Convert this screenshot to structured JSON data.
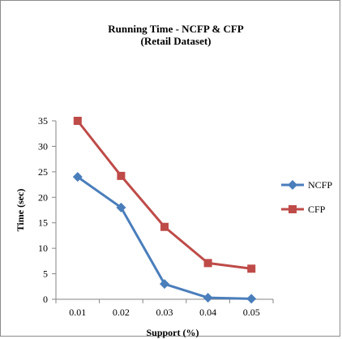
{
  "chart_data": {
    "type": "line",
    "title": "Running Time -  NCFP & CFP",
    "subtitle": "(Retail Dataset)",
    "xlabel": "Support (%)",
    "ylabel": "Time (sec)",
    "categories": [
      "0.01",
      "0.02",
      "0.03",
      "0.04",
      "0.05"
    ],
    "ylim": [
      0,
      35
    ],
    "yticks": [
      "0",
      "5",
      "10",
      "15",
      "20",
      "25",
      "30",
      "35"
    ],
    "grid": false,
    "legend_position": "right",
    "series": [
      {
        "name": "NCFP",
        "color": "#4a7ebb",
        "marker": "diamond",
        "values": [
          24,
          18,
          3,
          0.3,
          0.1
        ]
      },
      {
        "name": "CFP",
        "color": "#be4b48",
        "marker": "square",
        "values": [
          35,
          24.2,
          14.2,
          7.1,
          6
        ]
      }
    ]
  }
}
